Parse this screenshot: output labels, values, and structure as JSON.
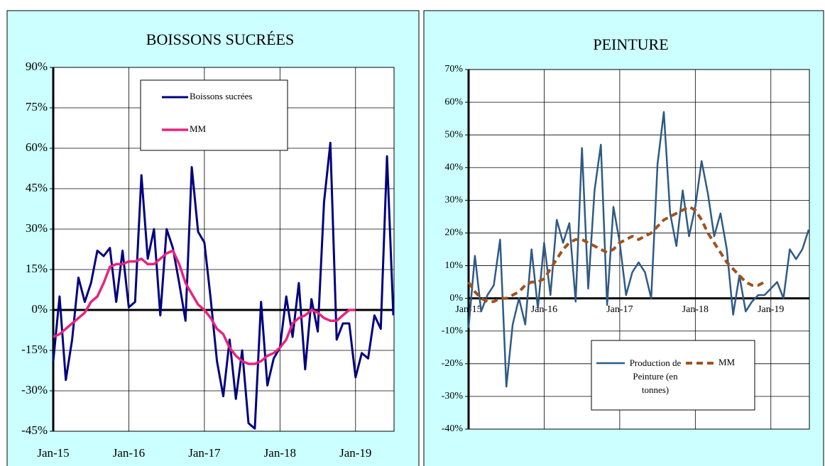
{
  "chart_data": [
    {
      "type": "line",
      "title": "BOISSONS SUCRÉES",
      "categories": [
        "Jan-15",
        null,
        null,
        null,
        null,
        null,
        null,
        null,
        null,
        null,
        null,
        null,
        "Jan-16",
        null,
        null,
        null,
        null,
        null,
        null,
        null,
        null,
        null,
        null,
        null,
        "Jan-17",
        null,
        null,
        null,
        null,
        null,
        null,
        null,
        null,
        null,
        null,
        null,
        "Jan-18",
        null,
        null,
        null,
        null,
        null,
        null,
        null,
        null,
        null,
        null,
        null,
        "Jan-19",
        null,
        null,
        null,
        null,
        null,
        null
      ],
      "series": [
        {
          "name": "Boissons sucrées",
          "color": "#000080",
          "values": [
            -19,
            5,
            -26,
            -11,
            12,
            3,
            10,
            22,
            20,
            23,
            3,
            22,
            1,
            3,
            50,
            19,
            30,
            -2,
            30,
            23,
            10,
            -4,
            53,
            29,
            25,
            4,
            -19,
            -32,
            -11,
            -33,
            -15,
            -42,
            -44,
            3,
            -28,
            -18,
            -14,
            5,
            -10,
            10,
            -22,
            4,
            -8,
            40,
            62,
            -11,
            -5,
            -5,
            -25,
            -16,
            -18,
            -2,
            -7,
            57,
            -2
          ]
        },
        {
          "name": "MM",
          "color": "#e8237f",
          "values": [
            -10,
            -9,
            -7,
            -5,
            -3,
            -1,
            3,
            5,
            10,
            16,
            17,
            17,
            18,
            18,
            19,
            17,
            17,
            19,
            21,
            22,
            17,
            10,
            6,
            2,
            0,
            -3,
            -7,
            -9,
            -14,
            -17,
            -19,
            -20,
            -20,
            -19,
            -17,
            -16,
            -14,
            -11,
            -5,
            -3,
            -2,
            0,
            -1,
            -3,
            -4,
            -4,
            -2,
            0,
            0,
            null,
            null,
            null,
            null,
            null,
            null
          ]
        }
      ],
      "ylim": [
        -45,
        90
      ],
      "yticks": [
        {
          "value": -45,
          "label": "-45%"
        },
        {
          "value": -30,
          "label": "-30%"
        },
        {
          "value": -15,
          "label": "-15%"
        },
        {
          "value": 0,
          "label": "0%"
        },
        {
          "value": 15,
          "label": "15%"
        },
        {
          "value": 30,
          "label": "30%"
        },
        {
          "value": 45,
          "label": "45%"
        },
        {
          "value": 60,
          "label": "60%"
        },
        {
          "value": 75,
          "label": "75%"
        },
        {
          "value": 90,
          "label": "90%"
        }
      ],
      "grid": true,
      "legend": "upper center"
    },
    {
      "type": "line",
      "title": "PEINTURE",
      "categories": [
        "Jan-15",
        null,
        null,
        null,
        null,
        null,
        null,
        null,
        null,
        null,
        null,
        null,
        "Jan-16",
        null,
        null,
        null,
        null,
        null,
        null,
        null,
        null,
        null,
        null,
        null,
        "Jan-17",
        null,
        null,
        null,
        null,
        null,
        null,
        null,
        null,
        null,
        null,
        null,
        "Jan-18",
        null,
        null,
        null,
        null,
        null,
        null,
        null,
        null,
        null,
        null,
        null,
        "Jan-19",
        null,
        null,
        null,
        null,
        null,
        null
      ],
      "series": [
        {
          "name": "Production de Peinture (en tonnes)",
          "color": "#2e5a87",
          "values": [
            -9,
            13,
            -4,
            1,
            4,
            18,
            -27,
            -8,
            0,
            -8,
            15,
            -3,
            17,
            1,
            24,
            17,
            23,
            -1,
            46,
            3,
            33,
            47,
            -2,
            28,
            17,
            1,
            8,
            11,
            8,
            0,
            41,
            57,
            26,
            16,
            33,
            19,
            28,
            42,
            32,
            19,
            26,
            15,
            -5,
            7,
            -4,
            -1,
            1,
            1,
            3,
            5,
            0,
            15,
            12,
            15,
            21
          ]
        },
        {
          "name": "MM",
          "color": "#a0521e",
          "dash": true,
          "values": [
            5,
            2,
            0,
            -1,
            -1,
            0,
            0,
            1,
            2,
            4,
            5,
            5,
            6,
            9,
            12,
            15,
            17,
            18,
            18,
            17,
            16,
            15,
            14,
            15,
            17,
            18,
            19,
            18,
            19,
            20,
            22,
            24,
            25,
            26,
            27,
            28,
            27,
            24,
            20,
            17,
            14,
            11,
            9,
            7,
            5,
            4,
            4,
            5,
            null,
            null,
            null,
            null,
            null,
            null,
            null
          ]
        }
      ],
      "ylim": [
        -40,
        70
      ],
      "yticks": [
        {
          "value": -40,
          "label": "-40%"
        },
        {
          "value": -30,
          "label": "-30%"
        },
        {
          "value": -20,
          "label": "-20%"
        },
        {
          "value": -10,
          "label": "-10%"
        },
        {
          "value": 0,
          "label": "0%"
        },
        {
          "value": 10,
          "label": "10%"
        },
        {
          "value": 20,
          "label": "20%"
        },
        {
          "value": 30,
          "label": "30%"
        },
        {
          "value": 40,
          "label": "40%"
        },
        {
          "value": 50,
          "label": "50%"
        },
        {
          "value": 60,
          "label": "60%"
        },
        {
          "value": 70,
          "label": "70%"
        }
      ],
      "grid": true,
      "legend": "lower center"
    }
  ]
}
